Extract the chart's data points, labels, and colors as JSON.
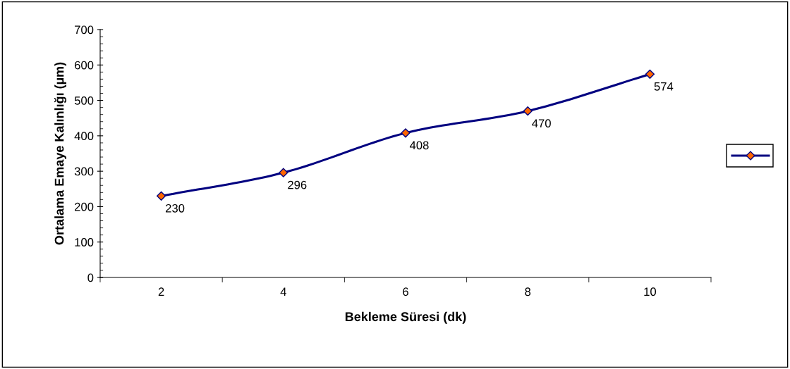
{
  "chart_data": {
    "type": "line",
    "xlabel": "Bekleme Süresi (dk)",
    "ylabel": "Ortalama Emaye Kalınlığı (µm)",
    "categories": [
      "2",
      "4",
      "6",
      "8",
      "10"
    ],
    "series": [
      {
        "color": "#000080",
        "values": [
          230,
          296,
          408,
          470,
          574
        ]
      }
    ],
    "ylim": [
      0,
      700
    ],
    "yticks": [
      0,
      100,
      200,
      300,
      400,
      500,
      600,
      700
    ],
    "data_labels": true,
    "marker": "diamond",
    "line_style": "solid",
    "grid": false
  }
}
